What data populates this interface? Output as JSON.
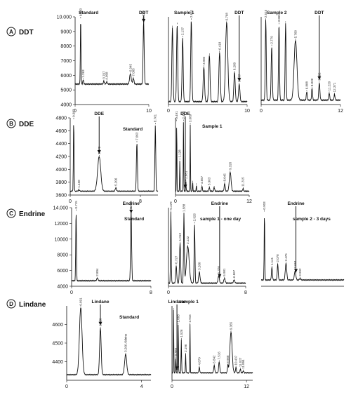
{
  "chart_data": [
    {
      "id": "ddt-standard",
      "type": "line",
      "row_letter": "A",
      "row_name": "DDT",
      "title": "Standard",
      "arrow_label": "DDT",
      "ylim": [
        4000,
        10000
      ],
      "y_ticks": [
        "10.000",
        "9000",
        "8000",
        "7000",
        "6000",
        "5000",
        "4000"
      ],
      "xlim": [
        0,
        10
      ],
      "x_ticks": [
        "0",
        "10"
      ],
      "baseline": 5400,
      "peaks": [
        {
          "x": 0.75,
          "y": 9900,
          "w": 0.06,
          "label": "0.993"
        },
        {
          "x": 1.1,
          "y": 5700,
          "w": 0.08,
          "label": "1.263"
        },
        {
          "x": 3.9,
          "y": 5600,
          "w": 0.1,
          "label": "3.767"
        },
        {
          "x": 4.3,
          "y": 5550,
          "w": 0.1,
          "label": "4.058"
        },
        {
          "x": 7.5,
          "y": 6100,
          "w": 0.15,
          "label": "6.945"
        },
        {
          "x": 7.9,
          "y": 5800,
          "w": 0.12,
          "label": "7.005"
        },
        {
          "x": 9.3,
          "y": 9700,
          "w": 0.1,
          "label": "9.238"
        }
      ],
      "arrow_x": 9.3
    },
    {
      "id": "ddt-sample-1",
      "type": "line",
      "title": "Sample  1",
      "arrow_label": "DDT",
      "ylim": [
        4000,
        10000
      ],
      "xlim": [
        0,
        10
      ],
      "x_ticks": [
        "0",
        "10"
      ],
      "baseline": 4200,
      "peaks": [
        {
          "x": 0.5,
          "y": 9300,
          "w": 0.1,
          "label": ""
        },
        {
          "x": 1.1,
          "y": 9500,
          "w": 0.1,
          "label": ""
        },
        {
          "x": 1.8,
          "y": 8600,
          "w": 0.1,
          "label": "2.137"
        },
        {
          "x": 2.9,
          "y": 9800,
          "w": 0.1,
          "label": "2.621"
        },
        {
          "x": 4.5,
          "y": 6600,
          "w": 0.12,
          "label": "3.982"
        },
        {
          "x": 5.2,
          "y": 7400,
          "w": 0.12,
          "label": ""
        },
        {
          "x": 6.5,
          "y": 7600,
          "w": 0.12,
          "label": "6.418"
        },
        {
          "x": 7.4,
          "y": 9600,
          "w": 0.2,
          "label": "6.768"
        },
        {
          "x": 8.4,
          "y": 6200,
          "w": 0.12,
          "label": "8.280"
        },
        {
          "x": 9.0,
          "y": 5400,
          "w": 0.12,
          "label": "8.877"
        }
      ],
      "arrow_x": 9.0
    },
    {
      "id": "ddt-sample-2",
      "type": "line",
      "title": "Sample  2",
      "arrow_label": "DDT",
      "ylim": [
        4000,
        10000
      ],
      "xlim": [
        0,
        12
      ],
      "x_ticks": [
        "0",
        "12"
      ],
      "baseline": 4300,
      "peaks": [
        {
          "x": 0.7,
          "y": 9800,
          "w": 0.1,
          "label": "2.515"
        },
        {
          "x": 1.6,
          "y": 8000,
          "w": 0.12,
          "label": "2.779"
        },
        {
          "x": 2.7,
          "y": 9500,
          "w": 0.1,
          "label": "3.865"
        },
        {
          "x": 3.7,
          "y": 9600,
          "w": 0.1,
          "label": ""
        },
        {
          "x": 5.2,
          "y": 8400,
          "w": 0.3,
          "label": "5.768"
        },
        {
          "x": 6.9,
          "y": 4900,
          "w": 0.1,
          "label": "6.888"
        },
        {
          "x": 7.7,
          "y": 5100,
          "w": 0.1,
          "label": "8.838"
        },
        {
          "x": 8.8,
          "y": 5500,
          "w": 0.12,
          "label": "9.062"
        },
        {
          "x": 10.3,
          "y": 4800,
          "w": 0.1,
          "label": "11.220"
        },
        {
          "x": 11.1,
          "y": 4700,
          "w": 0.1,
          "label": "12.371"
        }
      ],
      "arrow_x": 8.8
    },
    {
      "id": "dde-standard",
      "type": "line",
      "row_letter": "B",
      "row_name": "DDE",
      "title": "Standard",
      "arrow_label": "DDE",
      "ylim": [
        3600,
        4800
      ],
      "y_ticks": [
        "4800",
        "4600",
        "4400",
        "4200",
        "4000",
        "3800",
        "3600"
      ],
      "xlim": [
        0,
        10
      ],
      "x_ticks": [
        "0",
        "8"
      ],
      "baseline": 3660,
      "peaks": [
        {
          "x": 0.4,
          "y": 4780,
          "w": 0.05,
          "label": "0.983"
        },
        {
          "x": 1.0,
          "y": 3680,
          "w": 0.1,
          "label": "1.458"
        },
        {
          "x": 3.3,
          "y": 4200,
          "w": 0.25,
          "label": "3.172"
        },
        {
          "x": 5.2,
          "y": 3710,
          "w": 0.1,
          "label": "5.206"
        },
        {
          "x": 7.6,
          "y": 4420,
          "w": 0.08,
          "label": "7.063"
        },
        {
          "x": 9.7,
          "y": 4700,
          "w": 0.07,
          "label": "8.761"
        }
      ],
      "arrow_x": 3.3
    },
    {
      "id": "dde-sample-1",
      "type": "line",
      "title": "Sample  1",
      "arrow_label": "DDE",
      "ylim": [
        3600,
        4800
      ],
      "xlim": [
        0,
        12
      ],
      "x_ticks": [
        "0",
        "12"
      ],
      "baseline": 3660,
      "peaks": [
        {
          "x": 0.2,
          "y": 4750,
          "w": 0.05,
          "label": "0.491"
        },
        {
          "x": 0.7,
          "y": 4150,
          "w": 0.05,
          "label": "1.128"
        },
        {
          "x": 1.3,
          "y": 4750,
          "w": 0.05,
          "label": "2.480"
        },
        {
          "x": 1.7,
          "y": 3820,
          "w": 0.05,
          "label": "2.881"
        },
        {
          "x": 2.4,
          "y": 4700,
          "w": 0.05,
          "label": "3.689"
        },
        {
          "x": 2.8,
          "y": 3800,
          "w": 0.05,
          "label": ""
        },
        {
          "x": 3.4,
          "y": 3760,
          "w": 0.05,
          "label": ""
        },
        {
          "x": 4.3,
          "y": 3740,
          "w": 0.1,
          "label": "4.657"
        },
        {
          "x": 5.5,
          "y": 3720,
          "w": 0.1,
          "label": "5.963"
        },
        {
          "x": 6.3,
          "y": 3720,
          "w": 0.1,
          "label": ""
        },
        {
          "x": 8.0,
          "y": 3780,
          "w": 0.12,
          "label": "8.045"
        },
        {
          "x": 8.9,
          "y": 3960,
          "w": 0.2,
          "label": "9.326"
        },
        {
          "x": 11.0,
          "y": 3700,
          "w": 0.1,
          "label": "11.315"
        }
      ],
      "arrow_x": 1.6
    },
    {
      "id": "endrine-standard",
      "type": "line",
      "row_letter": "C",
      "row_name": "Endrine",
      "title": "Standard",
      "arrow_label": "Endrine",
      "ylim": [
        4000,
        14000
      ],
      "y_ticks": [
        "14.000",
        "12000",
        "10000",
        "8000",
        "6000",
        "4000"
      ],
      "xlim": [
        0,
        8
      ],
      "x_ticks": [
        "0",
        "8"
      ],
      "baseline": 4700,
      "peaks": [
        {
          "x": 0.45,
          "y": 13600,
          "w": 0.05,
          "label": "0.715"
        },
        {
          "x": 2.6,
          "y": 5000,
          "w": 0.1,
          "label": "2.804"
        },
        {
          "x": 6.0,
          "y": 13600,
          "w": 0.07,
          "label": "5.936"
        }
      ],
      "arrow_x": 6.0
    },
    {
      "id": "endrine-sample-1-one-day",
      "type": "line",
      "title": "sample 1 - one day",
      "arrow_label": "Endrine",
      "ylim": [
        4000,
        14000
      ],
      "xlim": [
        0,
        8
      ],
      "x_ticks": [
        "0",
        "8"
      ],
      "baseline": 4400,
      "peaks": [
        {
          "x": 0.25,
          "y": 13500,
          "w": 0.05,
          "label": "0.478"
        },
        {
          "x": 0.8,
          "y": 6600,
          "w": 0.08,
          "label": "0.727"
        },
        {
          "x": 1.2,
          "y": 9500,
          "w": 0.08,
          "label": "1.013"
        },
        {
          "x": 1.6,
          "y": 13200,
          "w": 0.06,
          "label": "1.588"
        },
        {
          "x": 2.0,
          "y": 9100,
          "w": 0.2,
          "label": "2.122"
        },
        {
          "x": 2.7,
          "y": 12000,
          "w": 0.06,
          "label": "2.926"
        },
        {
          "x": 3.2,
          "y": 5800,
          "w": 0.1,
          "label": "3.280"
        },
        {
          "x": 5.2,
          "y": 5300,
          "w": 0.1,
          "label": "5.326"
        },
        {
          "x": 5.8,
          "y": 5000,
          "w": 0.1,
          "label": "5.981"
        },
        {
          "x": 6.8,
          "y": 4800,
          "w": 0.1,
          "label": "6.867"
        }
      ],
      "arrow_x": 5.3
    },
    {
      "id": "endrine-sample-2-3-days",
      "type": "line",
      "title": "sample 2 - 3 days",
      "arrow_label": "Endrine",
      "ylim": [
        4000,
        14000
      ],
      "xlim": [
        0,
        10
      ],
      "x_ticks": [],
      "baseline": 4800,
      "peaks": [
        {
          "x": 0.4,
          "y": 13500,
          "w": 0.05,
          "label": "0.903"
        },
        {
          "x": 1.3,
          "y": 6400,
          "w": 0.08,
          "label": "1.141"
        },
        {
          "x": 2.0,
          "y": 6800,
          "w": 0.08,
          "label": "2.078"
        },
        {
          "x": 3.0,
          "y": 6900,
          "w": 0.12,
          "label": "2.475"
        },
        {
          "x": 4.1,
          "y": 6000,
          "w": 0.12,
          "label": "3.664"
        },
        {
          "x": 4.7,
          "y": 5000,
          "w": 0.1,
          "label": "3.992"
        }
      ],
      "arrow_x": 4.2
    },
    {
      "id": "lindane-standard",
      "type": "line",
      "row_letter": "D",
      "row_name": "Lindane",
      "title": "Standard",
      "arrow_label": "Lindane",
      "ylim": [
        4300,
        4700
      ],
      "y_ticks": [
        "4600",
        "4500",
        "4400"
      ],
      "xlim": [
        0,
        4.5
      ],
      "x_ticks": [
        "0",
        "4"
      ],
      "baseline": 4330,
      "peaks": [
        {
          "x": 0.75,
          "y": 4690,
          "w": 0.1,
          "label": "0.891"
        },
        {
          "x": 1.8,
          "y": 4580,
          "w": 0.06,
          "label": "1.820"
        },
        {
          "x": 3.15,
          "y": 4440,
          "w": 0.08,
          "label": "3.266 Aldrine"
        }
      ],
      "arrow_x": 1.8
    },
    {
      "id": "lindane-sample-1",
      "type": "line",
      "title": "sample 1",
      "arrow_label": "Lindane",
      "ylim": [
        4300,
        4700
      ],
      "xlim": [
        0,
        13
      ],
      "x_ticks": [
        "0",
        "12"
      ],
      "baseline": 4340,
      "peaks": [
        {
          "x": 0.25,
          "y": 4680,
          "w": 0.05,
          "label": ""
        },
        {
          "x": 0.6,
          "y": 4420,
          "w": 0.06,
          "label": "0.860"
        },
        {
          "x": 1.0,
          "y": 4600,
          "w": 0.06,
          "label": "1.003"
        },
        {
          "x": 1.5,
          "y": 4520,
          "w": 0.06,
          "label": "1.526"
        },
        {
          "x": 2.2,
          "y": 4440,
          "w": 0.06,
          "label": "2.196"
        },
        {
          "x": 2.9,
          "y": 4600,
          "w": 0.05,
          "label": "2.915"
        },
        {
          "x": 4.4,
          "y": 4370,
          "w": 0.1,
          "label": "4.870"
        },
        {
          "x": 6.8,
          "y": 4380,
          "w": 0.12,
          "label": "6.842"
        },
        {
          "x": 7.6,
          "y": 4400,
          "w": 0.12,
          "label": "7.516"
        },
        {
          "x": 9.0,
          "y": 4380,
          "w": 0.1,
          "label": "8.968"
        },
        {
          "x": 9.5,
          "y": 4560,
          "w": 0.25,
          "label": "9.365"
        },
        {
          "x": 10.3,
          "y": 4370,
          "w": 0.1,
          "label": "10.437"
        },
        {
          "x": 11.0,
          "y": 4360,
          "w": 0.1,
          "label": "11.027"
        },
        {
          "x": 11.5,
          "y": 4350,
          "w": 0.1,
          "label": "11.894"
        }
      ],
      "arrow_x": 0.8
    }
  ]
}
